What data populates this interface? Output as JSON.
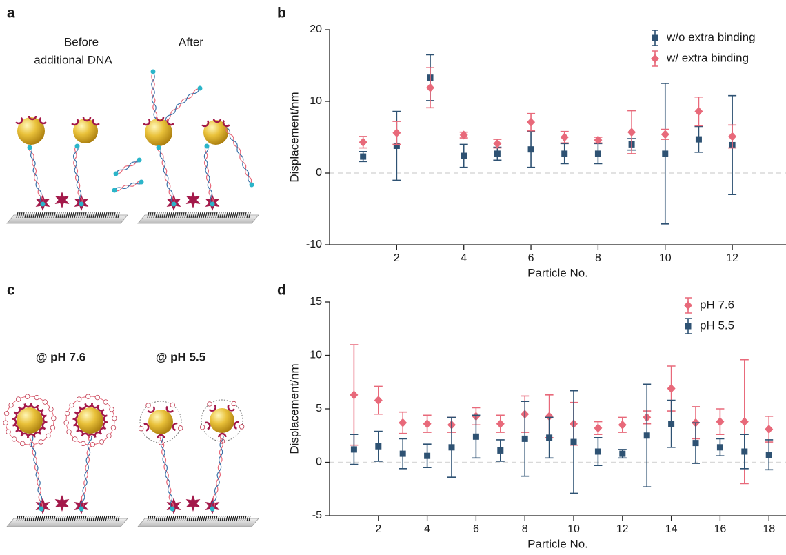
{
  "figure": {
    "panel_labels": [
      "a",
      "b",
      "c",
      "d"
    ],
    "illustration_a": {
      "before": [
        "Before",
        "additional DNA"
      ],
      "after": "After"
    },
    "illustration_c": {
      "left": "@ pH 7.6",
      "right": "@ pH 5.5"
    }
  },
  "chart_data": [
    {
      "type": "scatter",
      "x_label": "Particle No.",
      "y_label": "Displacement/nm",
      "x": [
        1,
        2,
        3,
        4,
        5,
        6,
        7,
        8,
        9,
        10,
        11,
        12
      ],
      "xlim": [
        0,
        13.6
      ],
      "ylim": [
        -10,
        20
      ],
      "xticks": [
        2,
        4,
        6,
        8,
        10,
        12
      ],
      "yticks": [
        -10,
        0,
        10,
        20
      ],
      "reference_line": {
        "value": 0,
        "style": "dashed",
        "color": "#d9d9d9"
      },
      "legend": "upper right",
      "series": [
        {
          "name": "w/o extra binding",
          "color": "#2e5273",
          "marker": "square",
          "values": [
            2.3,
            3.8,
            13.3,
            2.4,
            2.7,
            3.3,
            2.7,
            2.7,
            4.0,
            2.7,
            4.7,
            3.9
          ],
          "errors": [
            0.7,
            4.8,
            3.2,
            1.6,
            0.9,
            2.5,
            1.4,
            1.4,
            0.8,
            9.8,
            1.8,
            6.9
          ]
        },
        {
          "name": "w/ extra binding",
          "color": "#e8697a",
          "marker": "diamond",
          "values": [
            4.3,
            5.6,
            11.9,
            5.3,
            4.1,
            7.1,
            5.0,
            4.6,
            5.7,
            5.4,
            8.6,
            5.1
          ],
          "errors": [
            0.8,
            1.6,
            2.8,
            0.4,
            0.6,
            1.2,
            0.8,
            0.4,
            3.0,
            0.7,
            2.0,
            1.6
          ]
        }
      ]
    },
    {
      "type": "scatter",
      "x_label": "Particle No.",
      "y_label": "Displacement/nm",
      "x": [
        1,
        2,
        3,
        4,
        5,
        6,
        7,
        8,
        9,
        10,
        11,
        12,
        13,
        14,
        15,
        16,
        17,
        18
      ],
      "xlim": [
        0,
        18.7
      ],
      "ylim": [
        -5,
        15
      ],
      "xticks": [
        2,
        4,
        6,
        8,
        10,
        12,
        14,
        16,
        18
      ],
      "yticks": [
        -5,
        0,
        5,
        10,
        15
      ],
      "reference_line": {
        "value": 0,
        "style": "dashed",
        "color": "#d9d9d9"
      },
      "legend": "upper right",
      "series": [
        {
          "name": "pH 7.6",
          "color": "#e8697a",
          "marker": "diamond",
          "values": [
            6.3,
            5.8,
            3.7,
            3.6,
            3.5,
            4.3,
            3.6,
            4.5,
            4.3,
            3.6,
            3.2,
            3.5,
            4.2,
            6.9,
            3.7,
            3.8,
            3.8,
            3.1
          ],
          "errors": [
            4.7,
            1.3,
            1.0,
            0.8,
            0.7,
            0.8,
            0.8,
            1.7,
            2.0,
            2.0,
            0.6,
            0.7,
            0.6,
            2.1,
            1.5,
            1.2,
            5.8,
            1.2
          ]
        },
        {
          "name": "pH 5.5",
          "color": "#2e5273",
          "marker": "square",
          "values": [
            1.2,
            1.5,
            0.8,
            0.6,
            1.4,
            2.4,
            1.1,
            2.2,
            2.3,
            1.9,
            1.0,
            0.8,
            2.5,
            3.6,
            1.8,
            1.4,
            1.0,
            0.7
          ],
          "errors": [
            1.4,
            1.4,
            1.4,
            1.1,
            2.8,
            2.0,
            1.0,
            3.5,
            1.9,
            4.8,
            1.3,
            0.4,
            4.8,
            2.2,
            1.9,
            0.8,
            1.6,
            1.4
          ]
        }
      ]
    }
  ]
}
